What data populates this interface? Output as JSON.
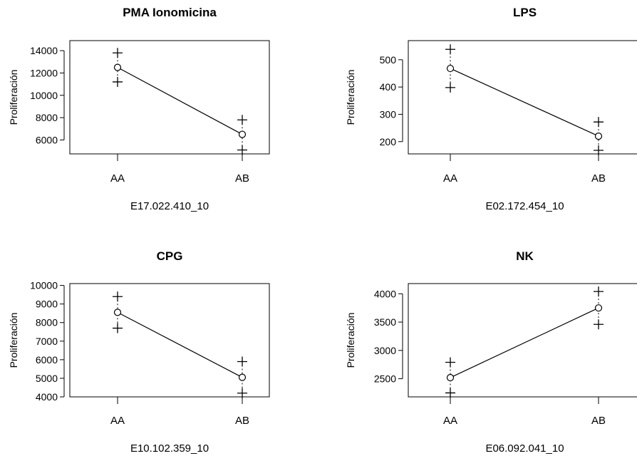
{
  "chart_data": [
    {
      "type": "line",
      "title": "PMA Ionomicina",
      "xlabel": "E17.022.410_10",
      "ylabel": "Proliferación",
      "categories": [
        "AA",
        "AB"
      ],
      "yticks": [
        6000,
        8000,
        10000,
        12000,
        14000
      ],
      "ylim": [
        4750,
        14900
      ],
      "mean": [
        12500,
        6500
      ],
      "upper": [
        13800,
        7800
      ],
      "lower": [
        11200,
        5100
      ]
    },
    {
      "type": "line",
      "title": "LPS",
      "xlabel": "E02.172.454_10",
      "ylabel": "Proliferación",
      "categories": [
        "AA",
        "AB"
      ],
      "yticks": [
        200,
        300,
        400,
        500
      ],
      "ylim": [
        155,
        570
      ],
      "mean": [
        468,
        220
      ],
      "upper": [
        538,
        272
      ],
      "lower": [
        398,
        168
      ]
    },
    {
      "type": "line",
      "title": "CPG",
      "xlabel": "E10.102.359_10",
      "ylabel": "Proliferación",
      "categories": [
        "AA",
        "AB"
      ],
      "yticks": [
        4000,
        5000,
        6000,
        7000,
        8000,
        9000,
        10000
      ],
      "ylim": [
        4000,
        10100
      ],
      "mean": [
        8550,
        5050
      ],
      "upper": [
        9400,
        5900
      ],
      "lower": [
        7700,
        4200
      ]
    },
    {
      "type": "line",
      "title": "NK",
      "xlabel": "E06.092.041_10",
      "ylabel": "Proliferación",
      "categories": [
        "AA",
        "AB"
      ],
      "yticks": [
        2500,
        3000,
        3500,
        4000
      ],
      "ylim": [
        2180,
        4180
      ],
      "mean": [
        2520,
        3750
      ],
      "upper": [
        2790,
        4040
      ],
      "lower": [
        2250,
        3460
      ]
    }
  ]
}
